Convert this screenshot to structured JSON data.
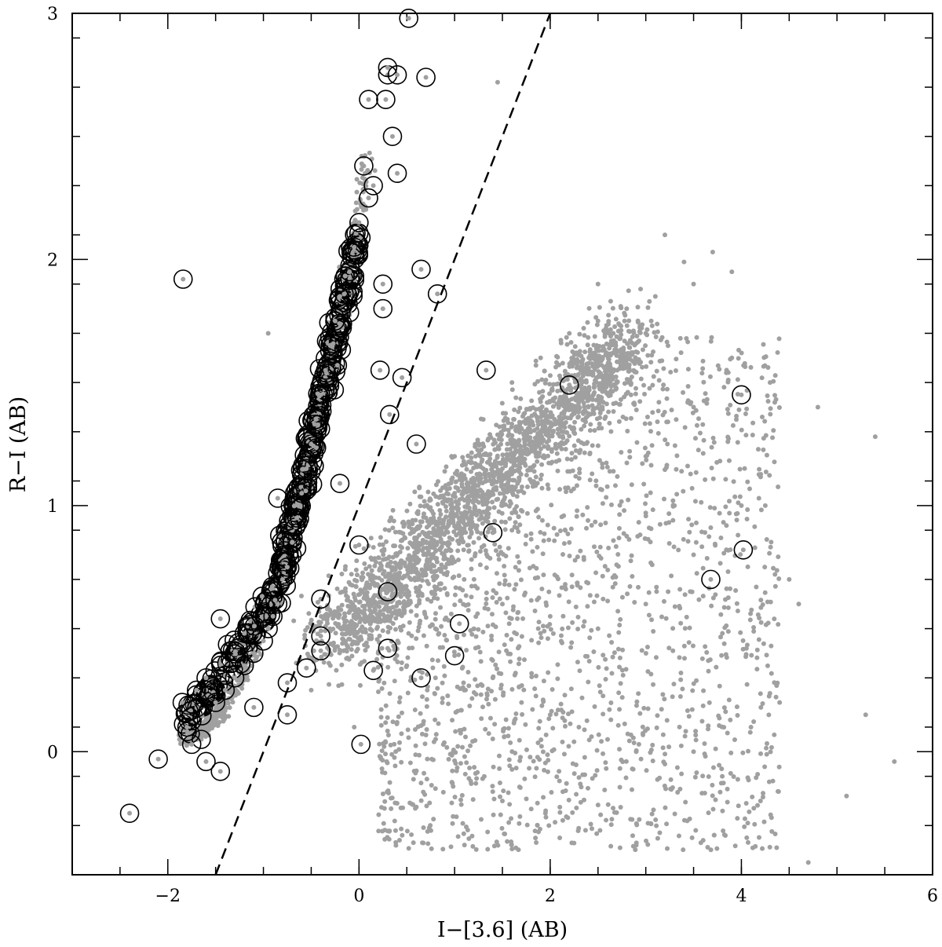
{
  "chart_data": {
    "type": "scatter",
    "title": "",
    "xlabel": "I−[3.6] (AB)",
    "ylabel": "R−I (AB)",
    "xlim": [
      -3.0,
      6.0
    ],
    "ylim": [
      -0.5,
      3.0
    ],
    "grid": false,
    "legend": "none",
    "x_ticks": [
      {
        "value": -2,
        "label": "−2"
      },
      {
        "value": 0,
        "label": "0"
      },
      {
        "value": 2,
        "label": "2"
      },
      {
        "value": 4,
        "label": "4"
      },
      {
        "value": 6,
        "label": "6"
      }
    ],
    "y_ticks": [
      {
        "value": 0,
        "label": "0"
      },
      {
        "value": 1,
        "label": "1"
      },
      {
        "value": 2,
        "label": "2"
      },
      {
        "value": 3,
        "label": "3"
      }
    ],
    "x_minor_step": 0.5,
    "y_minor_step": 0.2,
    "colors": {
      "points": "#a0a0a0",
      "circles": "#000000",
      "line": "#000000"
    },
    "dividing_line": {
      "style": "dashed",
      "points": [
        [
          -1.5,
          -0.5
        ],
        [
          2.0,
          3.0
        ]
      ]
    },
    "series": [
      {
        "marker": "small gray dot",
        "points": [
          [
            0.3,
            0.55
          ],
          [
            0.6,
            0.65
          ],
          [
            0.9,
            0.75
          ],
          [
            1.2,
            0.85
          ],
          [
            1.5,
            1.0
          ],
          [
            1.8,
            1.1
          ],
          [
            2.1,
            1.25
          ],
          [
            2.4,
            1.4
          ],
          [
            2.7,
            1.55
          ],
          [
            3.0,
            1.7
          ],
          [
            1.0,
            1.2
          ],
          [
            1.3,
            1.35
          ],
          [
            1.6,
            1.5
          ],
          [
            1.9,
            1.6
          ],
          [
            2.2,
            1.7
          ],
          [
            2.5,
            1.75
          ],
          [
            2.8,
            1.8
          ],
          [
            3.1,
            1.85
          ],
          [
            3.5,
            1.9
          ],
          [
            3.2,
            2.1
          ],
          [
            0.2,
            0.4
          ],
          [
            0.5,
            0.35
          ],
          [
            0.8,
            0.3
          ],
          [
            1.1,
            0.25
          ],
          [
            1.4,
            0.3
          ],
          [
            1.7,
            0.2
          ],
          [
            2.0,
            0.15
          ],
          [
            2.3,
            0.1
          ],
          [
            2.6,
            0.05
          ],
          [
            2.9,
            0.0
          ],
          [
            3.2,
            -0.05
          ],
          [
            3.5,
            0.0
          ],
          [
            3.8,
            -0.1
          ],
          [
            4.1,
            0.1
          ],
          [
            4.4,
            0.2
          ],
          [
            4.6,
            0.6
          ],
          [
            5.4,
            1.28
          ],
          [
            5.3,
            0.15
          ],
          [
            5.6,
            -0.04
          ],
          [
            4.7,
            -0.45
          ],
          [
            1.5,
            0.6
          ],
          [
            2.0,
            0.55
          ],
          [
            2.5,
            0.5
          ],
          [
            3.0,
            0.6
          ],
          [
            3.5,
            0.8
          ],
          [
            4.0,
            1.0
          ],
          [
            3.0,
            1.2
          ],
          [
            3.5,
            1.4
          ],
          [
            3.9,
            1.6
          ],
          [
            3.3,
            1.0
          ],
          [
            -0.3,
            0.35
          ],
          [
            0.0,
            0.45
          ],
          [
            -0.5,
            0.25
          ],
          [
            0.1,
            0.6
          ],
          [
            0.4,
            0.8
          ],
          [
            0.7,
            0.95
          ],
          [
            1.0,
            1.05
          ],
          [
            1.3,
            1.15
          ],
          [
            1.6,
            0.9
          ],
          [
            2.2,
            0.85
          ],
          [
            -0.95,
            1.7
          ],
          [
            1.45,
            2.72
          ],
          [
            -0.05,
            0.1
          ],
          [
            0.8,
            -0.15
          ],
          [
            1.5,
            -0.2
          ],
          [
            2.1,
            -0.35
          ],
          [
            2.9,
            -0.38
          ],
          [
            3.6,
            -0.36
          ],
          [
            4.2,
            -0.2
          ],
          [
            5.1,
            -0.18
          ],
          [
            4.5,
            0.7
          ],
          [
            4.25,
            1.0
          ],
          [
            4.8,
            1.4
          ],
          [
            4.3,
            1.5
          ],
          [
            3.9,
            1.95
          ],
          [
            3.4,
            1.99
          ],
          [
            3.7,
            2.03
          ],
          [
            2.5,
            1.9
          ],
          [
            0.8,
            0.5
          ],
          [
            1.1,
            0.7
          ]
        ]
      },
      {
        "marker": "open black circle",
        "points": [
          [
            -2.4,
            -0.25
          ],
          [
            -2.1,
            -0.03
          ],
          [
            -1.85,
            0.2
          ],
          [
            -1.8,
            0.1
          ],
          [
            -1.7,
            0.25
          ],
          [
            -1.6,
            0.3
          ],
          [
            -1.5,
            0.2
          ],
          [
            -1.4,
            0.25
          ],
          [
            -1.3,
            0.3
          ],
          [
            -1.2,
            0.35
          ],
          [
            -1.1,
            0.4
          ],
          [
            -1.0,
            0.45
          ],
          [
            -0.95,
            0.5
          ],
          [
            -0.9,
            0.55
          ],
          [
            -0.85,
            0.6
          ],
          [
            -0.8,
            0.7
          ],
          [
            -0.75,
            0.75
          ],
          [
            -0.7,
            0.85
          ],
          [
            -0.65,
            0.95
          ],
          [
            -0.6,
            1.05
          ],
          [
            -0.55,
            1.15
          ],
          [
            -0.5,
            1.25
          ],
          [
            -0.45,
            1.35
          ],
          [
            -0.4,
            1.45
          ],
          [
            -0.35,
            1.55
          ],
          [
            -0.3,
            1.65
          ],
          [
            -0.25,
            1.75
          ],
          [
            -0.2,
            1.85
          ],
          [
            -0.1,
            1.95
          ],
          [
            -0.05,
            2.05
          ],
          [
            0.0,
            2.15
          ],
          [
            0.1,
            2.25
          ],
          [
            0.15,
            2.3
          ],
          [
            0.05,
            2.38
          ],
          [
            0.4,
            2.35
          ],
          [
            0.35,
            2.5
          ],
          [
            0.1,
            2.65
          ],
          [
            0.28,
            2.65
          ],
          [
            0.3,
            2.75
          ],
          [
            0.4,
            2.75
          ],
          [
            0.7,
            2.74
          ],
          [
            0.3,
            2.78
          ],
          [
            0.52,
            2.98
          ],
          [
            -1.84,
            1.92
          ],
          [
            -0.85,
            1.03
          ],
          [
            -1.45,
            0.54
          ],
          [
            -1.6,
            -0.04
          ],
          [
            -1.45,
            -0.08
          ],
          [
            -1.65,
            0.05
          ],
          [
            -1.75,
            0.03
          ],
          [
            -1.1,
            0.18
          ],
          [
            -0.75,
            0.15
          ],
          [
            -0.75,
            0.28
          ],
          [
            -0.55,
            0.34
          ],
          [
            -0.4,
            0.62
          ],
          [
            -0.4,
            0.41
          ],
          [
            -0.4,
            0.47
          ],
          [
            -0.2,
            1.09
          ],
          [
            0.0,
            0.84
          ],
          [
            0.02,
            0.03
          ],
          [
            0.15,
            0.33
          ],
          [
            0.3,
            0.42
          ],
          [
            0.3,
            0.65
          ],
          [
            0.65,
            0.3
          ],
          [
            1.0,
            0.39
          ],
          [
            1.05,
            0.52
          ],
          [
            0.6,
            1.25
          ],
          [
            0.45,
            1.52
          ],
          [
            0.32,
            1.37
          ],
          [
            0.22,
            1.55
          ],
          [
            0.65,
            1.96
          ],
          [
            0.82,
            1.86
          ],
          [
            1.33,
            1.55
          ],
          [
            1.4,
            0.89
          ],
          [
            2.2,
            1.49
          ],
          [
            3.68,
            0.7
          ],
          [
            4.02,
            0.82
          ],
          [
            4.0,
            1.45
          ],
          [
            0.25,
            1.8
          ],
          [
            0.25,
            1.9
          ]
        ]
      }
    ]
  }
}
